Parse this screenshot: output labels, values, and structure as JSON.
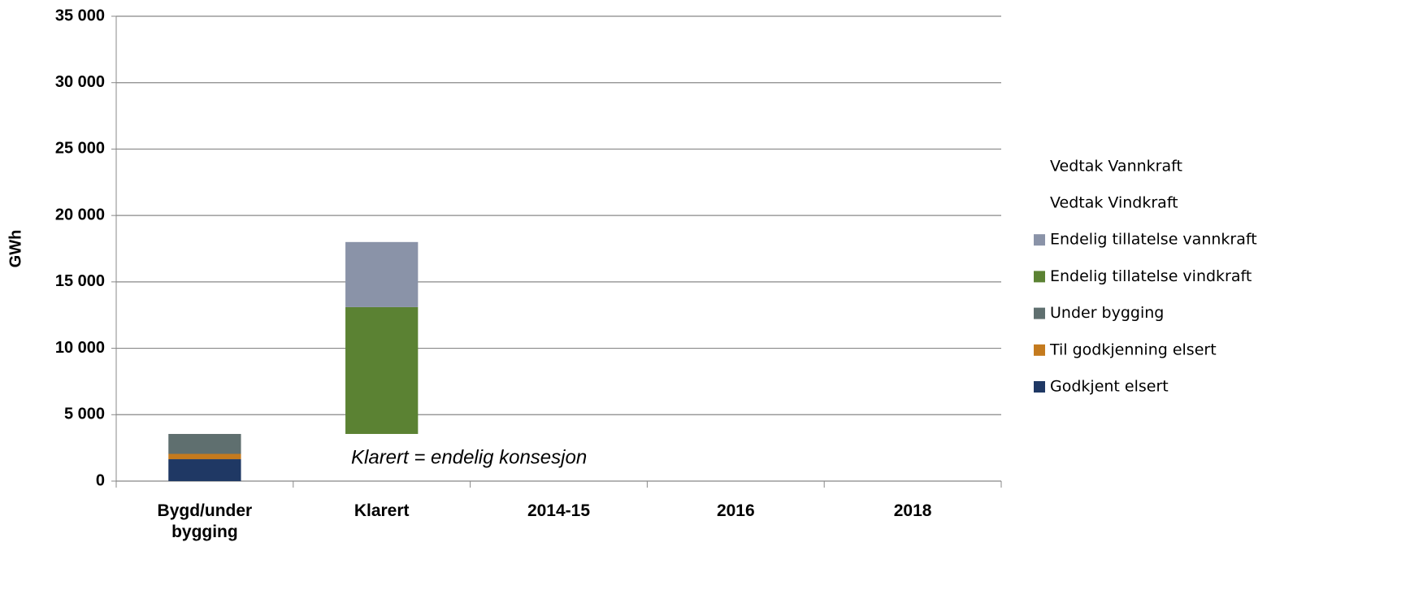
{
  "chart_data": {
    "type": "bar",
    "stacked": true,
    "waterfall": true,
    "y_label": "GWh",
    "annotation": "Klarert = endelig konsesjon",
    "categories": [
      "Bygd/under bygging",
      "Klarert",
      "2014-15",
      "2016",
      "2018"
    ],
    "series": [
      {
        "name": "Godkjent elsert",
        "color": "#1f3864",
        "values": [
          1650,
          null,
          null,
          null,
          null
        ]
      },
      {
        "name": "Til godkjenning elsert",
        "color": "#c47a1e",
        "values": [
          400,
          null,
          null,
          null,
          null
        ]
      },
      {
        "name": "Under bygging",
        "color": "#5f6f6f",
        "values": [
          1500,
          null,
          null,
          null,
          null
        ]
      },
      {
        "name": "Endelig tillatelse vindkraft",
        "color": "#5b8233",
        "values": [
          null,
          9550,
          null,
          null,
          null
        ]
      },
      {
        "name": "Endelig tillatelse vannkraft",
        "color": "#8a93a8",
        "values": [
          null,
          4900,
          null,
          null,
          null
        ]
      },
      {
        "name": "Vedtak Vindkraft",
        "color": "none",
        "values": [
          null,
          null,
          null,
          null,
          null
        ]
      },
      {
        "name": "Vedtak Vannkraft",
        "color": "none",
        "values": [
          null,
          null,
          null,
          null,
          null
        ]
      }
    ],
    "ylim": [
      0,
      35000
    ],
    "yticks": [
      0,
      {
        "value": 5000,
        "label": "5 000"
      },
      {
        "value": 10000,
        "label": "10 000"
      },
      {
        "value": 15000,
        "label": "15 000"
      },
      {
        "value": 20000,
        "label": "20 000"
      },
      {
        "value": 25000,
        "label": "25 000"
      },
      {
        "value": 30000,
        "label": "30 000"
      },
      {
        "value": 35000,
        "label": "35 000"
      }
    ],
    "grid": true,
    "legend": "right"
  }
}
